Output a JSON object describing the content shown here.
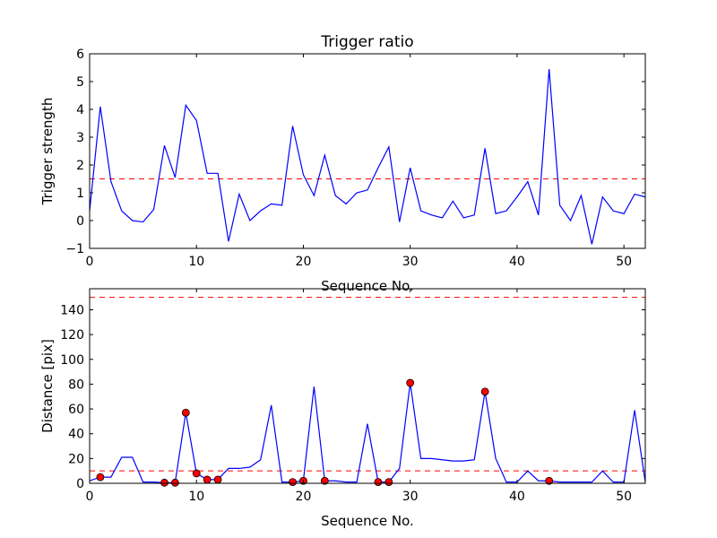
{
  "chart_data": [
    {
      "type": "line",
      "title": "Trigger ratio",
      "xlabel": "Sequence No.",
      "ylabel": "Trigger strength",
      "xlim": [
        0,
        52
      ],
      "ylim": [
        -1,
        6
      ],
      "xticks": [
        "0",
        "10",
        "20",
        "30",
        "40",
        "50"
      ],
      "yticks": [
        "−1",
        "0",
        "1",
        "2",
        "3",
        "4",
        "5",
        "6"
      ],
      "grid": false,
      "series": [
        {
          "color": "#0000ff",
          "x": [
            0,
            1,
            2,
            3,
            4,
            5,
            6,
            7,
            8,
            9,
            10,
            11,
            12,
            13,
            14,
            15,
            16,
            17,
            18,
            19,
            20,
            21,
            22,
            23,
            24,
            25,
            26,
            27,
            28,
            29,
            30,
            31,
            32,
            33,
            34,
            35,
            36,
            37,
            38,
            39,
            40,
            41,
            42,
            43,
            44,
            45,
            46,
            47,
            48,
            49,
            50,
            51,
            52
          ],
          "y": [
            0.35,
            4.1,
            1.4,
            0.35,
            0.0,
            -0.05,
            0.4,
            2.7,
            1.55,
            4.15,
            3.6,
            1.7,
            1.7,
            -0.75,
            0.95,
            0.0,
            0.35,
            0.6,
            0.55,
            3.4,
            1.65,
            0.9,
            2.35,
            0.9,
            0.6,
            1.0,
            1.1,
            1.9,
            2.65,
            -0.05,
            1.9,
            0.35,
            0.2,
            0.1,
            0.7,
            0.1,
            0.2,
            2.6,
            0.25,
            0.35,
            0.85,
            1.4,
            0.2,
            5.45,
            0.55,
            0.0,
            0.9,
            -0.85,
            0.85,
            0.35,
            0.25,
            0.95,
            0.85
          ]
        }
      ],
      "reference_lines": [
        {
          "axis": "y",
          "value": 1.5,
          "color": "#ff0000",
          "style": "dashed"
        }
      ]
    },
    {
      "type": "line",
      "title": "",
      "xlabel": "Sequence No.",
      "ylabel": "Distance [pix]",
      "xlim": [
        0,
        52
      ],
      "ylim": [
        0,
        157
      ],
      "xticks": [
        "0",
        "10",
        "20",
        "30",
        "40",
        "50"
      ],
      "yticks": [
        "0",
        "20",
        "40",
        "60",
        "80",
        "100",
        "120",
        "140"
      ],
      "grid": false,
      "series": [
        {
          "color": "#0000ff",
          "x": [
            0,
            1,
            2,
            3,
            4,
            5,
            6,
            7,
            8,
            9,
            10,
            11,
            12,
            13,
            14,
            15,
            16,
            17,
            18,
            19,
            20,
            21,
            22,
            23,
            24,
            25,
            26,
            27,
            28,
            29,
            30,
            31,
            32,
            33,
            34,
            35,
            36,
            37,
            38,
            39,
            40,
            41,
            42,
            43,
            44,
            45,
            46,
            47,
            48,
            49,
            50,
            51,
            52
          ],
          "y": [
            2,
            5,
            5,
            21,
            21,
            1,
            1,
            0.5,
            0.5,
            57,
            8,
            3,
            3,
            12,
            12,
            13,
            19,
            63,
            1,
            1,
            2,
            78,
            2,
            2,
            1,
            1,
            48,
            1,
            1,
            12,
            81,
            20,
            20,
            19,
            18,
            18,
            19,
            74,
            20,
            1,
            1,
            10,
            2,
            2,
            1,
            1,
            1,
            1,
            10,
            1,
            1,
            59,
            1
          ]
        },
        {
          "color": "#ff0000",
          "markers_only": true,
          "x": [
            1,
            7,
            8,
            9,
            10,
            11,
            12,
            19,
            20,
            22,
            27,
            28,
            30,
            37,
            43
          ],
          "y": [
            5,
            0.5,
            0.5,
            57,
            8,
            3,
            3,
            1,
            2,
            2,
            1,
            1,
            81,
            74,
            2
          ]
        }
      ],
      "reference_lines": [
        {
          "axis": "y",
          "value": 10,
          "color": "#ff0000",
          "style": "dashed"
        },
        {
          "axis": "y",
          "value": 150,
          "color": "#ff0000",
          "style": "dashed"
        }
      ]
    }
  ]
}
